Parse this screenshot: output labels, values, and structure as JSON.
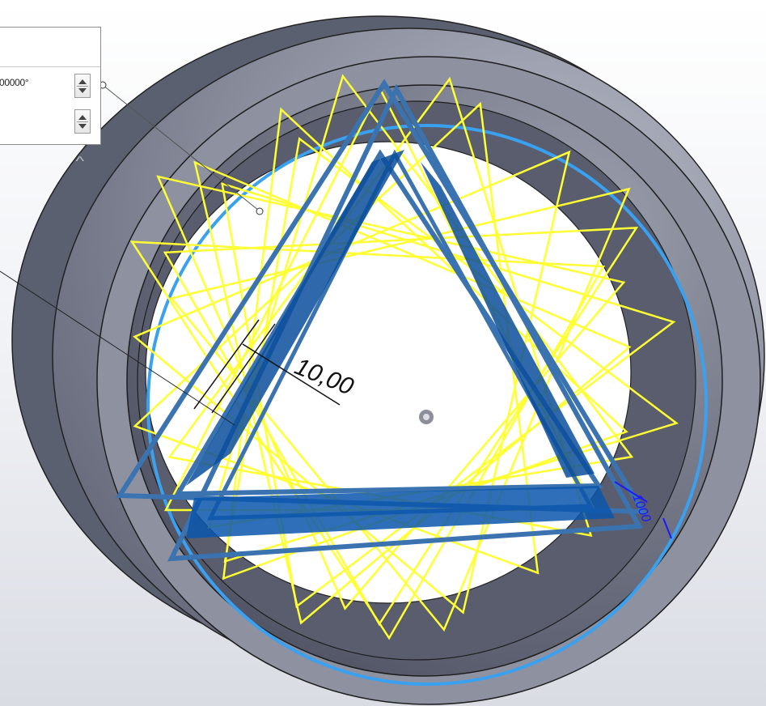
{
  "property_panel": {
    "angle_value": "00000°",
    "second_value": ""
  },
  "viewport": {
    "dimension_label": "10,00",
    "small_dimension_label": "1000"
  },
  "colors": {
    "part_gray": "#7b8091",
    "part_dark": "#565b6b",
    "sketch_yellow": "#ffff33",
    "triangle_blue": "#3b73b0",
    "triangle_fill": "#0b4d9c",
    "circle_blue": "#3aa0f0"
  },
  "icons": {
    "spin_up": "triangle-up",
    "spin_down": "triangle-down",
    "collapse": "chevron-up",
    "origin": "origin-marker"
  }
}
